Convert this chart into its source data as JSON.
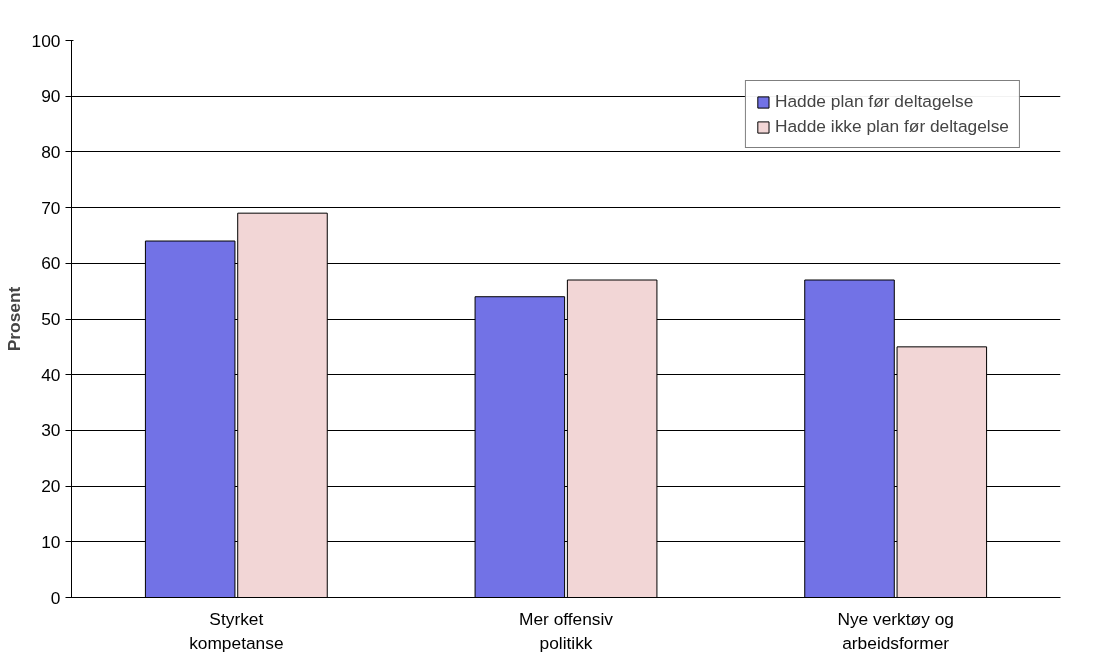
{
  "chart_data": {
    "type": "bar",
    "ylabel": "Prosent",
    "categories": [
      "Styrket kompetanse",
      "Mer offensiv politikk",
      "Nye verktøy og arbeidsformer"
    ],
    "series": [
      {
        "name": "Hadde plan før deltagelse",
        "color": "#7272e6",
        "values": [
          64,
          54,
          57
        ]
      },
      {
        "name": "Hadde ikke plan før deltagelse",
        "color": "#f2d6d6",
        "values": [
          69,
          57,
          45
        ]
      }
    ],
    "ylim": [
      0,
      100
    ],
    "yticks": [
      0,
      10,
      20,
      30,
      40,
      50,
      60,
      70,
      80,
      90,
      100
    ],
    "grid": "y",
    "legend": "top right"
  }
}
